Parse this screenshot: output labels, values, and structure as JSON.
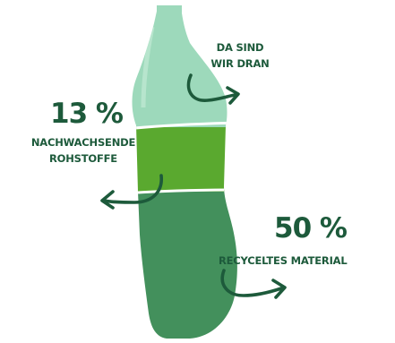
{
  "figure": {
    "top_label": {
      "line1": "DA SIND",
      "line2": "WIR DRAN"
    },
    "middle_label": {
      "percent": "13 %",
      "line1": "NACHWACHSENDE",
      "line2": "ROHSTOFFE"
    },
    "bottom_label": {
      "percent": "50 %",
      "line1": "RECYCELTES MATERIAL"
    }
  },
  "colors": {
    "text": "#1d5a3b",
    "top_segment": "#9dd9bb",
    "middle_segment": "#5aa92f",
    "bottom_segment": "#43905c",
    "divider": "#ffffff"
  },
  "segments": {
    "renewable_percent": 13,
    "recycled_percent": 50
  }
}
